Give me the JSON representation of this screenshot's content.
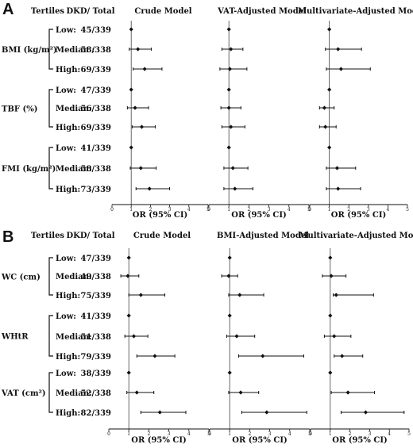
{
  "chart_data": [
    {
      "type": "forest",
      "panel": "A",
      "header": {
        "tertiles": "Tertiles",
        "ratio": "DKD/ Total"
      },
      "xlabel": "OR (95% CI)",
      "xlim": [
        0,
        5
      ],
      "xticks": [
        "0",
        "1",
        "2",
        "3",
        "4",
        "5"
      ],
      "groups": [
        {
          "label": "BMI (kg/m²)",
          "rows": [
            {
              "tertile": "Low:",
              "ratio": "45/339"
            },
            {
              "tertile": "Median :",
              "ratio": "58/338"
            },
            {
              "tertile": "High:",
              "ratio": "69/339"
            }
          ]
        },
        {
          "label": "TBF (%)",
          "rows": [
            {
              "tertile": "Low:",
              "ratio": "47/339"
            },
            {
              "tertile": "Median:",
              "ratio": "56/338"
            },
            {
              "tertile": "High:",
              "ratio": "69/339"
            }
          ]
        },
        {
          "label": "FMI (kg/m²)",
          "rows": [
            {
              "tertile": "Low:",
              "ratio": "41/339"
            },
            {
              "tertile": "Median:",
              "ratio": "58/338"
            },
            {
              "tertile": "High:",
              "ratio": "73/339"
            }
          ]
        }
      ],
      "models": [
        {
          "title": "Crude Model",
          "estimates": [
            {
              "or": 1.0,
              "lo": 1.0,
              "hi": 1.0
            },
            {
              "or": 1.35,
              "lo": 0.9,
              "hi": 2.05
            },
            {
              "or": 1.7,
              "lo": 1.1,
              "hi": 2.6
            },
            {
              "or": 1.0,
              "lo": 1.0,
              "hi": 1.0
            },
            {
              "or": 1.2,
              "lo": 0.8,
              "hi": 1.9
            },
            {
              "or": 1.55,
              "lo": 1.05,
              "hi": 2.25
            },
            {
              "or": 1.0,
              "lo": 1.0,
              "hi": 1.0
            },
            {
              "or": 1.5,
              "lo": 0.95,
              "hi": 2.3
            },
            {
              "or": 1.95,
              "lo": 1.25,
              "hi": 3.0
            }
          ]
        },
        {
          "title": "VAT-Adjusted Model",
          "estimates": [
            {
              "or": 1.0,
              "lo": 1.0,
              "hi": 1.0
            },
            {
              "or": 1.1,
              "lo": 0.65,
              "hi": 1.7
            },
            {
              "or": 1.05,
              "lo": 0.55,
              "hi": 1.9
            },
            {
              "or": 1.0,
              "lo": 1.0,
              "hi": 1.0
            },
            {
              "or": 1.0,
              "lo": 0.6,
              "hi": 1.6
            },
            {
              "or": 1.1,
              "lo": 0.65,
              "hi": 1.8
            },
            {
              "or": 1.0,
              "lo": 1.0,
              "hi": 1.0
            },
            {
              "or": 1.2,
              "lo": 0.75,
              "hi": 1.95
            },
            {
              "or": 1.3,
              "lo": 0.75,
              "hi": 2.2
            }
          ]
        },
        {
          "title": "Multivariate-Adjusted Model",
          "estimates": [
            {
              "or": 1.0,
              "lo": 1.0,
              "hi": 1.0
            },
            {
              "or": 1.45,
              "lo": 0.8,
              "hi": 2.65
            },
            {
              "or": 1.6,
              "lo": 0.85,
              "hi": 3.1
            },
            {
              "or": 1.0,
              "lo": 1.0,
              "hi": 1.0
            },
            {
              "or": 0.75,
              "lo": 0.5,
              "hi": 1.25
            },
            {
              "or": 0.8,
              "lo": 0.5,
              "hi": 1.35
            },
            {
              "or": 1.0,
              "lo": 1.0,
              "hi": 1.0
            },
            {
              "or": 1.4,
              "lo": 0.85,
              "hi": 2.35
            },
            {
              "or": 1.45,
              "lo": 0.85,
              "hi": 2.6
            }
          ]
        }
      ]
    },
    {
      "type": "forest",
      "panel": "B",
      "header": {
        "tertiles": "Tertiles",
        "ratio": "DKD/ Total"
      },
      "xlabel": "OR (95% CI)",
      "xlim": [
        0,
        5
      ],
      "xticks": [
        "0",
        "1",
        "2",
        "3",
        "4",
        "5"
      ],
      "groups": [
        {
          "label": "WC (cm)",
          "rows": [
            {
              "tertile": "Low:",
              "ratio": "47/339"
            },
            {
              "tertile": "Median:",
              "ratio": "49/338"
            },
            {
              "tertile": "High:",
              "ratio": "75/339"
            }
          ]
        },
        {
          "label": "WHtR",
          "rows": [
            {
              "tertile": "Low:",
              "ratio": "41/339"
            },
            {
              "tertile": "Median:",
              "ratio": "51/338"
            },
            {
              "tertile": "High:",
              "ratio": "79/339"
            }
          ]
        },
        {
          "label": "VAT (cm²)",
          "rows": [
            {
              "tertile": "Low:",
              "ratio": "38/339"
            },
            {
              "tertile": "Median:",
              "ratio": "52/338"
            },
            {
              "tertile": "High:",
              "ratio": "82/339"
            }
          ]
        }
      ],
      "models": [
        {
          "title": "Crude Model",
          "estimates": [
            {
              "or": 1.0,
              "lo": 1.0,
              "hi": 1.0
            },
            {
              "or": 0.95,
              "lo": 0.6,
              "hi": 1.5
            },
            {
              "or": 1.6,
              "lo": 1.0,
              "hi": 2.8
            },
            {
              "or": 1.0,
              "lo": 1.0,
              "hi": 1.0
            },
            {
              "or": 1.25,
              "lo": 0.8,
              "hi": 1.95
            },
            {
              "or": 2.3,
              "lo": 1.4,
              "hi": 3.3
            },
            {
              "or": 1.0,
              "lo": 1.0,
              "hi": 1.0
            },
            {
              "or": 1.4,
              "lo": 0.9,
              "hi": 2.25
            },
            {
              "or": 2.55,
              "lo": 1.6,
              "hi": 3.85
            }
          ]
        },
        {
          "title": "BMI-Adjusted Model",
          "estimates": [
            {
              "or": 1.0,
              "lo": 1.0,
              "hi": 1.0
            },
            {
              "or": 0.95,
              "lo": 0.6,
              "hi": 1.4
            },
            {
              "or": 1.5,
              "lo": 0.95,
              "hi": 2.7
            },
            {
              "or": 1.0,
              "lo": 1.0,
              "hi": 1.0
            },
            {
              "or": 1.35,
              "lo": 0.85,
              "hi": 2.25
            },
            {
              "or": 2.65,
              "lo": 1.45,
              "hi": 4.7
            },
            {
              "or": 1.0,
              "lo": 1.0,
              "hi": 1.0
            },
            {
              "or": 1.55,
              "lo": 0.95,
              "hi": 2.45
            },
            {
              "or": 2.85,
              "lo": 1.6,
              "hi": 4.85
            }
          ]
        },
        {
          "title": "Multivariate-Adjusted Model",
          "estimates": [
            {
              "or": 1.0,
              "lo": 1.0,
              "hi": 1.0
            },
            {
              "or": 1.05,
              "lo": 0.6,
              "hi": 1.8
            },
            {
              "or": 1.3,
              "lo": 1.15,
              "hi": 3.2
            },
            {
              "or": 1.0,
              "lo": 1.0,
              "hi": 1.0
            },
            {
              "or": 1.2,
              "lo": 0.7,
              "hi": 2.05
            },
            {
              "or": 1.6,
              "lo": 1.2,
              "hi": 2.65
            },
            {
              "or": 1.0,
              "lo": 1.0,
              "hi": 1.0
            },
            {
              "or": 1.9,
              "lo": 1.05,
              "hi": 3.25
            },
            {
              "or": 2.8,
              "lo": 1.55,
              "hi": 4.75
            }
          ]
        }
      ]
    }
  ]
}
